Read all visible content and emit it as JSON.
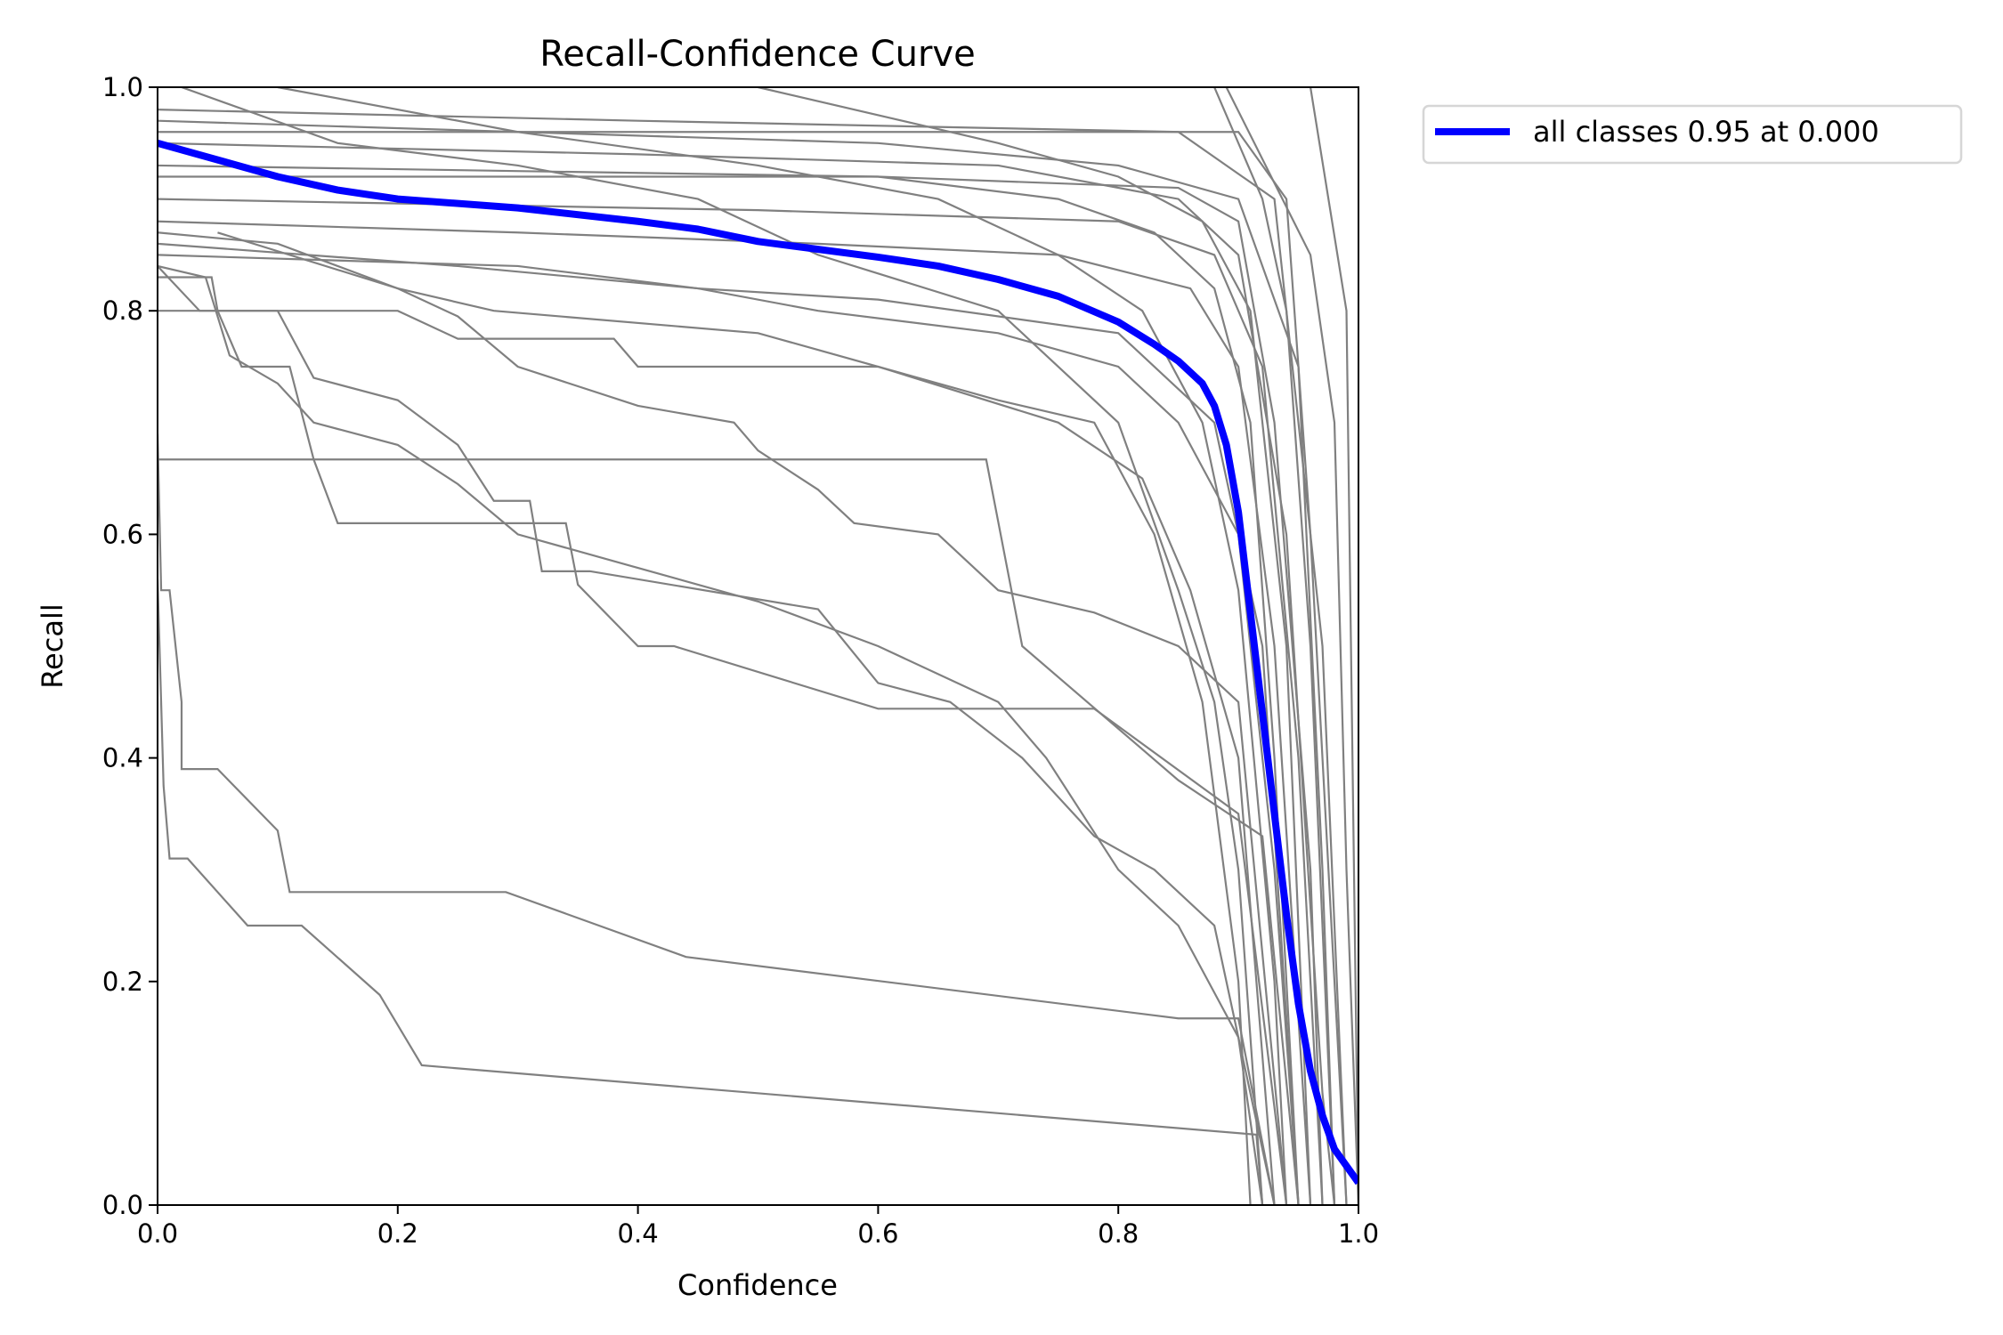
{
  "chart_data": {
    "type": "line",
    "title": "Recall-Confidence Curve",
    "xlabel": "Confidence",
    "ylabel": "Recall",
    "xlim": [
      0,
      1
    ],
    "ylim": [
      0,
      1
    ],
    "xticks": [
      "0.0",
      "0.2",
      "0.4",
      "0.6",
      "0.8",
      "1.0"
    ],
    "yticks": [
      "0.0",
      "0.2",
      "0.4",
      "0.6",
      "0.8",
      "1.0"
    ],
    "grid": false,
    "legend_placement": "outside-top-right",
    "colors": {
      "all_classes": "#0000ff",
      "per_class": "#808080"
    },
    "series": [
      {
        "name": "all classes 0.95 at 0.000",
        "color": "#0000ff",
        "points": [
          [
            0,
            0.95
          ],
          [
            0.05,
            0.935
          ],
          [
            0.1,
            0.92
          ],
          [
            0.15,
            0.908
          ],
          [
            0.2,
            0.9
          ],
          [
            0.3,
            0.892
          ],
          [
            0.4,
            0.88
          ],
          [
            0.45,
            0.873
          ],
          [
            0.5,
            0.862
          ],
          [
            0.6,
            0.848
          ],
          [
            0.65,
            0.84
          ],
          [
            0.7,
            0.828
          ],
          [
            0.75,
            0.813
          ],
          [
            0.8,
            0.79
          ],
          [
            0.83,
            0.77
          ],
          [
            0.85,
            0.755
          ],
          [
            0.87,
            0.735
          ],
          [
            0.88,
            0.715
          ],
          [
            0.89,
            0.68
          ],
          [
            0.9,
            0.62
          ],
          [
            0.91,
            0.53
          ],
          [
            0.92,
            0.44
          ],
          [
            0.93,
            0.35
          ],
          [
            0.94,
            0.26
          ],
          [
            0.95,
            0.18
          ],
          [
            0.96,
            0.12
          ],
          [
            0.97,
            0.08
          ],
          [
            0.98,
            0.05
          ],
          [
            0.99,
            0.035
          ],
          [
            1.0,
            0.02
          ]
        ]
      }
    ],
    "class_curves": [
      [
        [
          0,
          0.69
        ],
        [
          0.003,
          0.55
        ],
        [
          0.01,
          0.55
        ],
        [
          0.015,
          0.5
        ],
        [
          0.02,
          0.45
        ],
        [
          0.02,
          0.39
        ],
        [
          0.05,
          0.39
        ],
        [
          0.1,
          0.335
        ],
        [
          0.11,
          0.28
        ],
        [
          0.29,
          0.28
        ],
        [
          0.44,
          0.222
        ],
        [
          0.85,
          0.167
        ],
        [
          0.9,
          0.167
        ],
        [
          0.93,
          0
        ]
      ],
      [
        [
          0,
          0.56
        ],
        [
          0.005,
          0.375
        ],
        [
          0.01,
          0.31
        ],
        [
          0.025,
          0.31
        ],
        [
          0.075,
          0.25
        ],
        [
          0.12,
          0.25
        ],
        [
          0.185,
          0.188
        ],
        [
          0.22,
          0.125
        ],
        [
          0.915,
          0.063
        ],
        [
          0.92,
          0
        ]
      ],
      [
        [
          0,
          0.667
        ],
        [
          0.69,
          0.667
        ],
        [
          0.72,
          0.5
        ],
        [
          0.85,
          0.38
        ],
        [
          0.92,
          0.33
        ],
        [
          0.95,
          0
        ]
      ],
      [
        [
          0,
          0.83
        ],
        [
          0.045,
          0.83
        ],
        [
          0.05,
          0.8
        ],
        [
          0.07,
          0.75
        ],
        [
          0.11,
          0.75
        ],
        [
          0.13,
          0.667
        ],
        [
          0.15,
          0.61
        ],
        [
          0.34,
          0.61
        ],
        [
          0.35,
          0.555
        ],
        [
          0.4,
          0.5
        ],
        [
          0.43,
          0.5
        ],
        [
          0.6,
          0.444
        ],
        [
          0.78,
          0.444
        ],
        [
          0.9,
          0.35
        ],
        [
          0.94,
          0
        ]
      ],
      [
        [
          0,
          0.84
        ],
        [
          0.035,
          0.8
        ],
        [
          0.1,
          0.8
        ],
        [
          0.13,
          0.74
        ],
        [
          0.2,
          0.72
        ],
        [
          0.25,
          0.68
        ],
        [
          0.28,
          0.63
        ],
        [
          0.31,
          0.63
        ],
        [
          0.32,
          0.567
        ],
        [
          0.36,
          0.567
        ],
        [
          0.55,
          0.533
        ],
        [
          0.6,
          0.467
        ],
        [
          0.66,
          0.45
        ],
        [
          0.72,
          0.4
        ],
        [
          0.78,
          0.33
        ],
        [
          0.83,
          0.3
        ],
        [
          0.88,
          0.25
        ],
        [
          0.93,
          0
        ]
      ],
      [
        [
          0,
          0.84
        ],
        [
          0.04,
          0.83
        ],
        [
          0.06,
          0.76
        ],
        [
          0.1,
          0.735
        ],
        [
          0.13,
          0.7
        ],
        [
          0.2,
          0.68
        ],
        [
          0.25,
          0.645
        ],
        [
          0.3,
          0.6
        ],
        [
          0.4,
          0.57
        ],
        [
          0.5,
          0.54
        ],
        [
          0.6,
          0.5
        ],
        [
          0.7,
          0.45
        ],
        [
          0.74,
          0.4
        ],
        [
          0.8,
          0.3
        ],
        [
          0.85,
          0.25
        ],
        [
          0.9,
          0.15
        ],
        [
          0.92,
          0
        ]
      ],
      [
        [
          0,
          0.87
        ],
        [
          0.1,
          0.86
        ],
        [
          0.2,
          0.82
        ],
        [
          0.25,
          0.795
        ],
        [
          0.3,
          0.75
        ],
        [
          0.4,
          0.715
        ],
        [
          0.48,
          0.7
        ],
        [
          0.5,
          0.675
        ],
        [
          0.55,
          0.64
        ],
        [
          0.58,
          0.61
        ],
        [
          0.65,
          0.6
        ],
        [
          0.7,
          0.55
        ],
        [
          0.78,
          0.53
        ],
        [
          0.85,
          0.5
        ],
        [
          0.9,
          0.45
        ],
        [
          0.94,
          0
        ]
      ],
      [
        [
          0,
          0.8
        ],
        [
          0.2,
          0.8
        ],
        [
          0.25,
          0.775
        ],
        [
          0.38,
          0.775
        ],
        [
          0.4,
          0.75
        ],
        [
          0.6,
          0.75
        ],
        [
          0.75,
          0.7
        ],
        [
          0.82,
          0.65
        ],
        [
          0.86,
          0.55
        ],
        [
          0.9,
          0.4
        ],
        [
          0.93,
          0
        ]
      ],
      [
        [
          0,
          0.85
        ],
        [
          0.3,
          0.84
        ],
        [
          0.45,
          0.82
        ],
        [
          0.6,
          0.81
        ],
        [
          0.8,
          0.78
        ],
        [
          0.88,
          0.7
        ],
        [
          0.92,
          0.5
        ],
        [
          0.95,
          0
        ]
      ],
      [
        [
          0,
          0.88
        ],
        [
          0.3,
          0.87
        ],
        [
          0.55,
          0.86
        ],
        [
          0.75,
          0.85
        ],
        [
          0.86,
          0.82
        ],
        [
          0.9,
          0.75
        ],
        [
          0.93,
          0.5
        ],
        [
          0.96,
          0
        ]
      ],
      [
        [
          0,
          0.9
        ],
        [
          0.5,
          0.89
        ],
        [
          0.8,
          0.88
        ],
        [
          0.88,
          0.85
        ],
        [
          0.92,
          0.75
        ],
        [
          0.95,
          0.4
        ],
        [
          0.97,
          0
        ]
      ],
      [
        [
          0,
          0.92
        ],
        [
          0.6,
          0.92
        ],
        [
          0.85,
          0.91
        ],
        [
          0.9,
          0.88
        ],
        [
          0.93,
          0.7
        ],
        [
          0.96,
          0.3
        ],
        [
          0.97,
          0
        ]
      ],
      [
        [
          0,
          0.95
        ],
        [
          0.4,
          0.94
        ],
        [
          0.7,
          0.93
        ],
        [
          0.85,
          0.9
        ],
        [
          0.9,
          0.85
        ],
        [
          0.94,
          0.6
        ],
        [
          0.97,
          0.1
        ],
        [
          0.98,
          0
        ]
      ],
      [
        [
          0,
          0.96
        ],
        [
          0.9,
          0.96
        ],
        [
          0.94,
          0.9
        ],
        [
          0.96,
          0.6
        ],
        [
          0.98,
          0.2
        ],
        [
          0.99,
          0
        ]
      ],
      [
        [
          0,
          0.98
        ],
        [
          0.4,
          0.97
        ],
        [
          0.85,
          0.96
        ],
        [
          0.93,
          0.9
        ],
        [
          0.97,
          0.5
        ],
        [
          0.99,
          0
        ]
      ],
      [
        [
          0.88,
          1
        ],
        [
          0.92,
          0.9
        ],
        [
          0.94,
          0.8
        ],
        [
          0.96,
          0.5
        ],
        [
          0.98,
          0
        ]
      ],
      [
        [
          0.89,
          1
        ],
        [
          0.96,
          0.85
        ],
        [
          0.98,
          0.7
        ],
        [
          0.99,
          0.3
        ],
        [
          1.0,
          0
        ]
      ],
      [
        [
          0.96,
          1
        ],
        [
          0.99,
          0.8
        ],
        [
          0.995,
          0.4
        ],
        [
          1.0,
          0
        ]
      ],
      [
        [
          0.02,
          1
        ],
        [
          0.15,
          0.95
        ],
        [
          0.3,
          0.93
        ],
        [
          0.45,
          0.9
        ],
        [
          0.55,
          0.85
        ],
        [
          0.7,
          0.8
        ],
        [
          0.8,
          0.7
        ],
        [
          0.85,
          0.55
        ],
        [
          0.88,
          0.45
        ],
        [
          0.9,
          0.3
        ],
        [
          0.92,
          0
        ]
      ],
      [
        [
          0.1,
          1
        ],
        [
          0.3,
          0.96
        ],
        [
          0.5,
          0.93
        ],
        [
          0.65,
          0.9
        ],
        [
          0.75,
          0.85
        ],
        [
          0.82,
          0.8
        ],
        [
          0.87,
          0.7
        ],
        [
          0.9,
          0.55
        ],
        [
          0.93,
          0.2
        ],
        [
          0.94,
          0
        ]
      ],
      [
        [
          0,
          0.93
        ],
        [
          0.6,
          0.92
        ],
        [
          0.75,
          0.9
        ],
        [
          0.83,
          0.87
        ],
        [
          0.88,
          0.82
        ],
        [
          0.91,
          0.7
        ],
        [
          0.93,
          0.4
        ],
        [
          0.95,
          0
        ]
      ],
      [
        [
          0,
          0.86
        ],
        [
          0.25,
          0.84
        ],
        [
          0.45,
          0.82
        ],
        [
          0.55,
          0.8
        ],
        [
          0.7,
          0.78
        ],
        [
          0.8,
          0.75
        ],
        [
          0.85,
          0.7
        ],
        [
          0.9,
          0.6
        ],
        [
          0.93,
          0.3
        ],
        [
          0.95,
          0
        ]
      ],
      [
        [
          0.5,
          1
        ],
        [
          0.7,
          0.95
        ],
        [
          0.8,
          0.92
        ],
        [
          0.87,
          0.88
        ],
        [
          0.91,
          0.8
        ],
        [
          0.94,
          0.5
        ],
        [
          0.96,
          0
        ]
      ],
      [
        [
          0,
          0.97
        ],
        [
          0.3,
          0.96
        ],
        [
          0.6,
          0.95
        ],
        [
          0.8,
          0.93
        ],
        [
          0.9,
          0.9
        ],
        [
          0.95,
          0.75
        ],
        [
          0.97,
          0.3
        ],
        [
          0.98,
          0
        ]
      ],
      [
        [
          0.05,
          0.87
        ],
        [
          0.2,
          0.82
        ],
        [
          0.28,
          0.8
        ],
        [
          0.5,
          0.78
        ],
        [
          0.7,
          0.72
        ],
        [
          0.78,
          0.7
        ],
        [
          0.83,
          0.6
        ],
        [
          0.87,
          0.45
        ],
        [
          0.9,
          0.2
        ],
        [
          0.91,
          0
        ]
      ]
    ]
  }
}
